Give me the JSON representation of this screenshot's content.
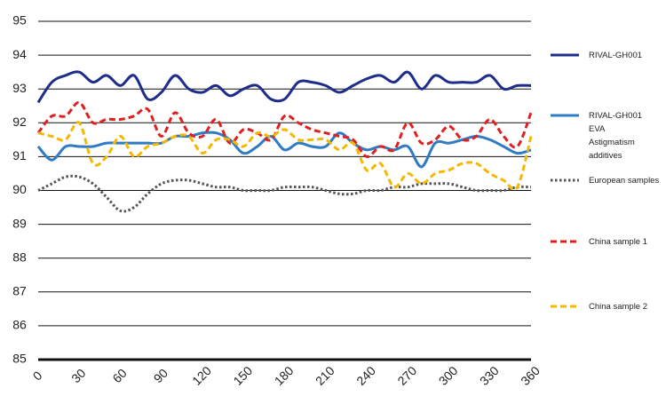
{
  "chart_data": {
    "type": "line",
    "x": [
      0,
      10,
      20,
      30,
      40,
      50,
      60,
      70,
      80,
      90,
      100,
      110,
      120,
      130,
      140,
      150,
      160,
      170,
      180,
      190,
      200,
      210,
      220,
      230,
      240,
      250,
      260,
      270,
      280,
      290,
      300,
      310,
      320,
      330,
      340,
      350,
      360
    ],
    "xlim": [
      0,
      360
    ],
    "xticks": [
      0,
      30,
      60,
      90,
      120,
      150,
      180,
      210,
      240,
      270,
      300,
      330,
      360
    ],
    "ylim": [
      85,
      95
    ],
    "yticks": [
      85,
      86,
      87,
      88,
      89,
      90,
      91,
      92,
      93,
      94,
      95
    ],
    "grid": true,
    "legend": "right",
    "series": [
      {
        "name": "RIVAL-GH001",
        "color": "#1f2d8a",
        "style": "solid",
        "values": [
          92.6,
          93.2,
          93.4,
          93.5,
          93.2,
          93.4,
          93.1,
          93.4,
          92.7,
          92.9,
          93.4,
          93.0,
          92.9,
          93.1,
          92.8,
          93.0,
          93.1,
          92.7,
          92.7,
          93.2,
          93.2,
          93.1,
          92.9,
          93.1,
          93.3,
          93.4,
          93.2,
          93.5,
          93.0,
          93.4,
          93.2,
          93.2,
          93.2,
          93.4,
          93.0,
          93.1,
          93.1
        ]
      },
      {
        "name": "RIVAL-GH001\nEVA\nAstigmatism additives",
        "color": "#2f7bc4",
        "style": "solid",
        "values": [
          91.3,
          90.9,
          91.3,
          91.3,
          91.3,
          91.4,
          91.4,
          91.4,
          91.4,
          91.4,
          91.6,
          91.6,
          91.7,
          91.7,
          91.5,
          91.1,
          91.3,
          91.6,
          91.2,
          91.4,
          91.3,
          91.3,
          91.7,
          91.4,
          91.2,
          91.3,
          91.2,
          91.3,
          90.7,
          91.4,
          91.4,
          91.5,
          91.6,
          91.5,
          91.3,
          91.1,
          91.2
        ]
      },
      {
        "name": "European samples",
        "color": "#555555",
        "style": "dotted",
        "values": [
          90.0,
          90.2,
          90.4,
          90.4,
          90.2,
          89.8,
          89.4,
          89.5,
          89.9,
          90.2,
          90.3,
          90.3,
          90.2,
          90.1,
          90.1,
          90.0,
          90.0,
          90.0,
          90.1,
          90.1,
          90.1,
          90.0,
          89.9,
          89.9,
          90.0,
          90.0,
          90.1,
          90.1,
          90.2,
          90.2,
          90.2,
          90.1,
          90.0,
          90.0,
          90.0,
          90.1,
          90.1
        ]
      },
      {
        "name": "China sample 1",
        "color": "#e02020",
        "style": "dashed",
        "values": [
          91.7,
          92.2,
          92.2,
          92.6,
          92.0,
          92.1,
          92.1,
          92.2,
          92.4,
          91.6,
          92.3,
          91.7,
          91.6,
          92.1,
          91.4,
          91.8,
          91.7,
          91.5,
          92.2,
          92.0,
          91.8,
          91.7,
          91.6,
          91.5,
          91.0,
          91.3,
          91.2,
          92.0,
          91.4,
          91.5,
          91.9,
          91.5,
          91.6,
          92.1,
          91.6,
          91.3,
          92.3
        ]
      },
      {
        "name": "China sample 2",
        "color": "#f5b800",
        "style": "dashed",
        "values": [
          91.7,
          91.6,
          91.5,
          92.0,
          90.8,
          91.0,
          91.6,
          91.0,
          91.3,
          91.4,
          91.6,
          91.6,
          91.1,
          91.5,
          91.5,
          91.3,
          91.7,
          91.6,
          91.8,
          91.5,
          91.5,
          91.5,
          91.2,
          91.4,
          90.6,
          90.8,
          90.1,
          90.5,
          90.2,
          90.5,
          90.6,
          90.8,
          90.8,
          90.5,
          90.3,
          90.1,
          91.6
        ]
      }
    ]
  }
}
